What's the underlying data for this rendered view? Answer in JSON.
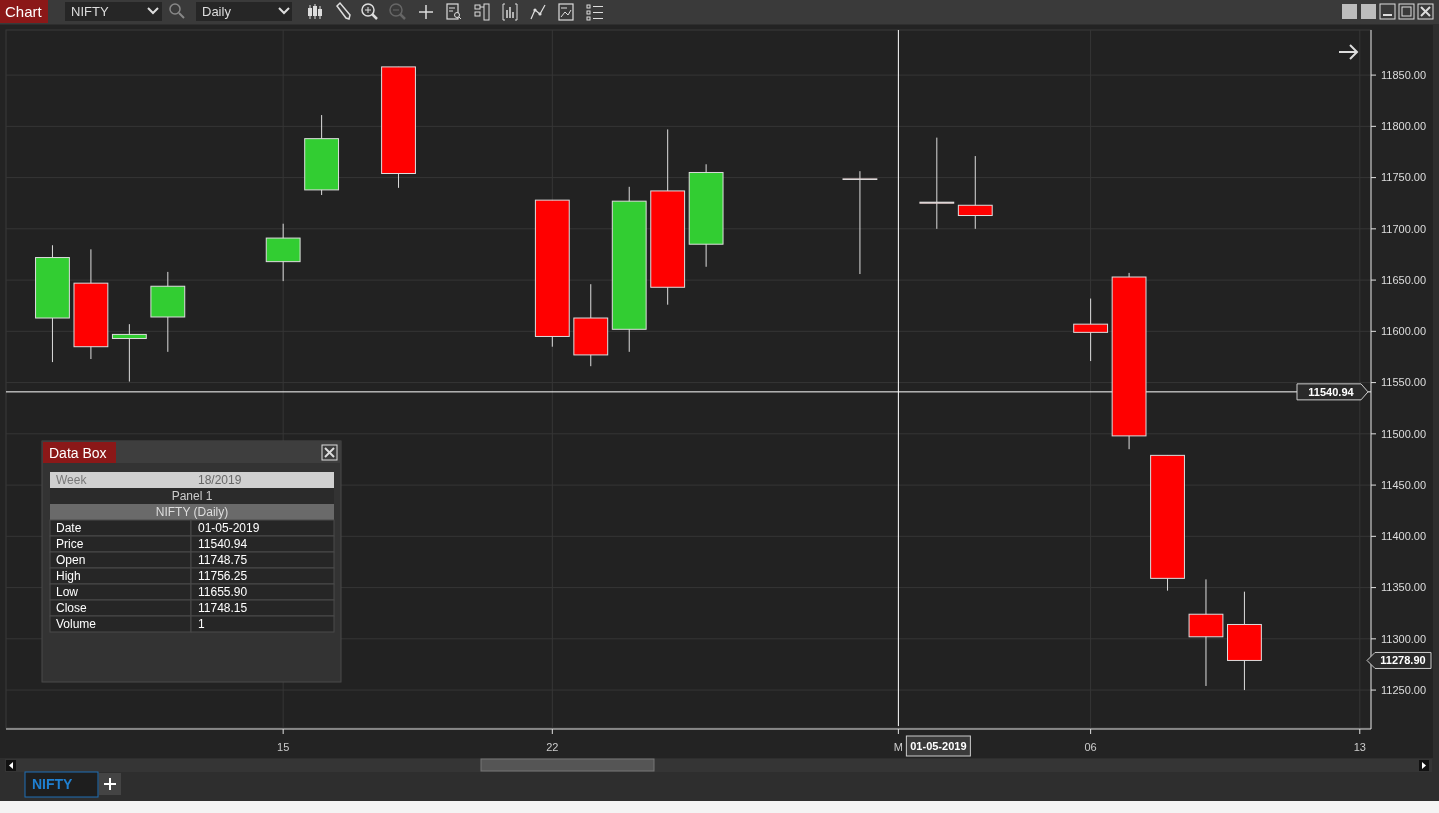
{
  "chart_data": {
    "type": "candlestick",
    "x": [
      "2019-04-09",
      "2019-04-10",
      "2019-04-11",
      "2019-04-12",
      "2019-04-15",
      "2019-04-16",
      "2019-04-18",
      "2019-04-22",
      "2019-04-23",
      "2019-04-24",
      "2019-04-25",
      "2019-04-26",
      "2019-04-30",
      "2019-05-02",
      "2019-05-03",
      "2019-05-06",
      "2019-05-07",
      "2019-05-08",
      "2019-05-09",
      "2019-05-10"
    ],
    "ohlc": [
      [
        11613,
        11684,
        11570,
        11672
      ],
      [
        11647,
        11680,
        11573,
        11585
      ],
      [
        11593,
        11607,
        11551,
        11597
      ],
      [
        11614,
        11658,
        11580,
        11644
      ],
      [
        11668,
        11705,
        11649,
        11691
      ],
      [
        11738,
        11811,
        11733,
        11788
      ],
      [
        11858,
        11858,
        11740,
        11754
      ],
      [
        11728,
        11728,
        11585,
        11595
      ],
      [
        11613,
        11646,
        11566,
        11577
      ],
      [
        11602,
        11741,
        11580,
        11727
      ],
      [
        11737,
        11797,
        11626,
        11643
      ],
      [
        11685,
        11763,
        11663,
        11755
      ],
      [
        11748.75,
        11756.25,
        11655.9,
        11748.15
      ],
      [
        11726,
        11789,
        11700,
        11725
      ],
      [
        11723,
        11771,
        11700,
        11713
      ],
      [
        11607,
        11632,
        11571,
        11599
      ],
      [
        11653,
        11657,
        11485,
        11498
      ],
      [
        11479,
        11479,
        11347,
        11359
      ],
      [
        11324,
        11358,
        11254,
        11302
      ],
      [
        11314,
        11346,
        11250,
        11278.9
      ]
    ],
    "colors": [
      "#32cd32",
      "#ff0000",
      "#32cd32",
      "#32cd32",
      "#32cd32",
      "#32cd32",
      "#ff0000",
      "#ff0000",
      "#ff0000",
      "#32cd32",
      "#ff0000",
      "#32cd32",
      "#ff0000",
      "#ff0000",
      "#ff0000",
      "#ff0000",
      "#ff0000",
      "#ff0000",
      "#ff0000",
      "#ff0000"
    ],
    "xlim": [
      "2019-04-07T19:00",
      "2019-05-13T07:00"
    ],
    "xticks": [
      {
        "value": "2019-04-15",
        "label": "15"
      },
      {
        "value": "2019-04-22",
        "label": "22"
      },
      {
        "value": "2019-05-01",
        "label": "M"
      },
      {
        "value": "2019-05-06",
        "label": "06"
      },
      {
        "value": "2019-05-13",
        "label": "13"
      }
    ],
    "ylim": [
      11213,
      11894
    ],
    "yticks": [
      {
        "value": 11250,
        "label": "11250.00"
      },
      {
        "value": 11300,
        "label": "11300.00"
      },
      {
        "value": 11350,
        "label": "11350.00"
      },
      {
        "value": 11400,
        "label": "11400.00"
      },
      {
        "value": 11450,
        "label": "11450.00"
      },
      {
        "value": 11500,
        "label": "11500.00"
      },
      {
        "value": 11550,
        "label": "11550.00"
      },
      {
        "value": 11600,
        "label": "11600.00"
      },
      {
        "value": 11650,
        "label": "11650.00"
      },
      {
        "value": 11700,
        "label": "11700.00"
      },
      {
        "value": 11750,
        "label": "11750.00"
      },
      {
        "value": 11800,
        "label": "11800.00"
      },
      {
        "value": 11850,
        "label": "11850.00"
      }
    ],
    "grid": true,
    "ref_lines": [
      {
        "axis": "y",
        "value": 11540.94,
        "label": "11540.94",
        "color": "#ffffff"
      },
      {
        "axis": "x",
        "value": "2019-05-01",
        "label": "01-05-2019",
        "color": "#ffffff"
      }
    ],
    "annotations": [
      "Chart",
      "NIFTY",
      "Daily",
      "Data Box",
      "Week",
      "18/2019",
      "Panel 1",
      "NIFTY (Daily)",
      "Date",
      "01-05-2019",
      "Price",
      "11540.94",
      "Open",
      "11748.75",
      "High",
      "11756.25",
      "Low",
      "11655.90",
      "Close",
      "11748.15",
      "Volume",
      "1",
      "NIFTY",
      "11278.90"
    ]
  }
}
